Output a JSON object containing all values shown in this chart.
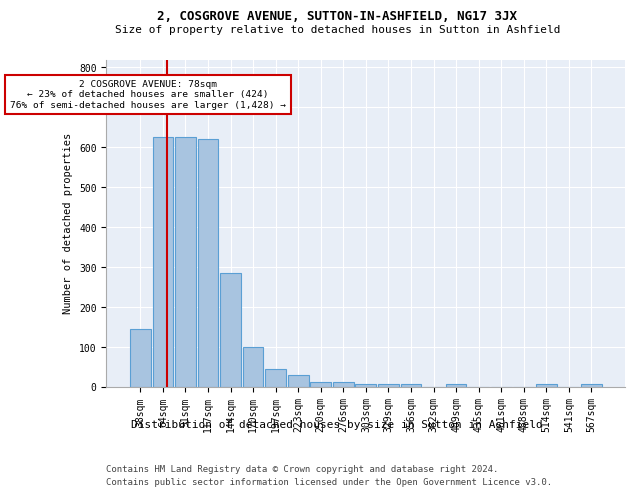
{
  "title1": "2, COSGROVE AVENUE, SUTTON-IN-ASHFIELD, NG17 3JX",
  "title2": "Size of property relative to detached houses in Sutton in Ashfield",
  "xlabel": "Distribution of detached houses by size in Sutton in Ashfield",
  "ylabel": "Number of detached properties",
  "footer1": "Contains HM Land Registry data © Crown copyright and database right 2024.",
  "footer2": "Contains public sector information licensed under the Open Government Licence v3.0.",
  "annotation_line1": "2 COSGROVE AVENUE: 78sqm",
  "annotation_line2": "← 23% of detached houses are smaller (424)",
  "annotation_line3": "76% of semi-detached houses are larger (1,428) →",
  "bar_color": "#a8c4e0",
  "bar_edge_color": "#5a9fd4",
  "vline_color": "#cc0000",
  "background_color": "#e8eef7",
  "categories": [
    "38sqm",
    "64sqm",
    "91sqm",
    "117sqm",
    "144sqm",
    "170sqm",
    "197sqm",
    "223sqm",
    "250sqm",
    "276sqm",
    "303sqm",
    "329sqm",
    "356sqm",
    "382sqm",
    "409sqm",
    "435sqm",
    "461sqm",
    "488sqm",
    "514sqm",
    "541sqm",
    "567sqm"
  ],
  "values": [
    145,
    627,
    625,
    622,
    285,
    100,
    46,
    30,
    12,
    12,
    8,
    8,
    8,
    0,
    7,
    0,
    0,
    0,
    8,
    0,
    8
  ],
  "ylim": [
    0,
    820
  ],
  "yticks": [
    0,
    100,
    200,
    300,
    400,
    500,
    600,
    700,
    800
  ],
  "vline_x_index": 1.18,
  "title1_fontsize": 9,
  "title2_fontsize": 8,
  "ylabel_fontsize": 7.5,
  "xlabel_fontsize": 8,
  "tick_fontsize": 7,
  "footer_fontsize": 6.5
}
